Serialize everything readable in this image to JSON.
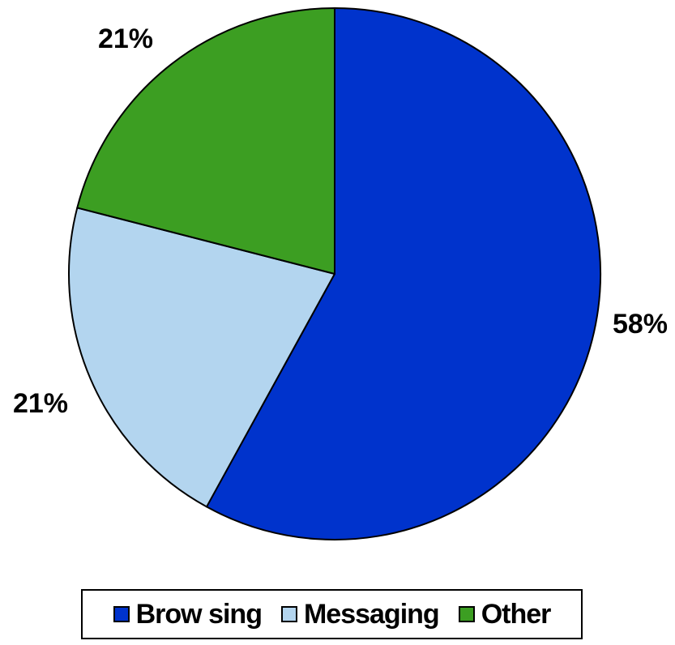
{
  "chart_data": {
    "type": "pie",
    "title": "",
    "slices": [
      {
        "label": "Browsing",
        "value": 58,
        "display": "58%",
        "color": "#0033cc"
      },
      {
        "label": "Messaging",
        "value": 21,
        "display": "21%",
        "color": "#b3d5ef"
      },
      {
        "label": "Other",
        "value": 21,
        "display": "21%",
        "color": "#3c9e22"
      }
    ],
    "start_angle_deg": 0,
    "direction": "clockwise",
    "legend_position": "bottom"
  },
  "legend": {
    "items": [
      {
        "label": "Brow sing",
        "color": "#0033cc"
      },
      {
        "label": "Messaging",
        "color": "#b3d5ef"
      },
      {
        "label": "Other",
        "color": "#3c9e22"
      }
    ]
  }
}
